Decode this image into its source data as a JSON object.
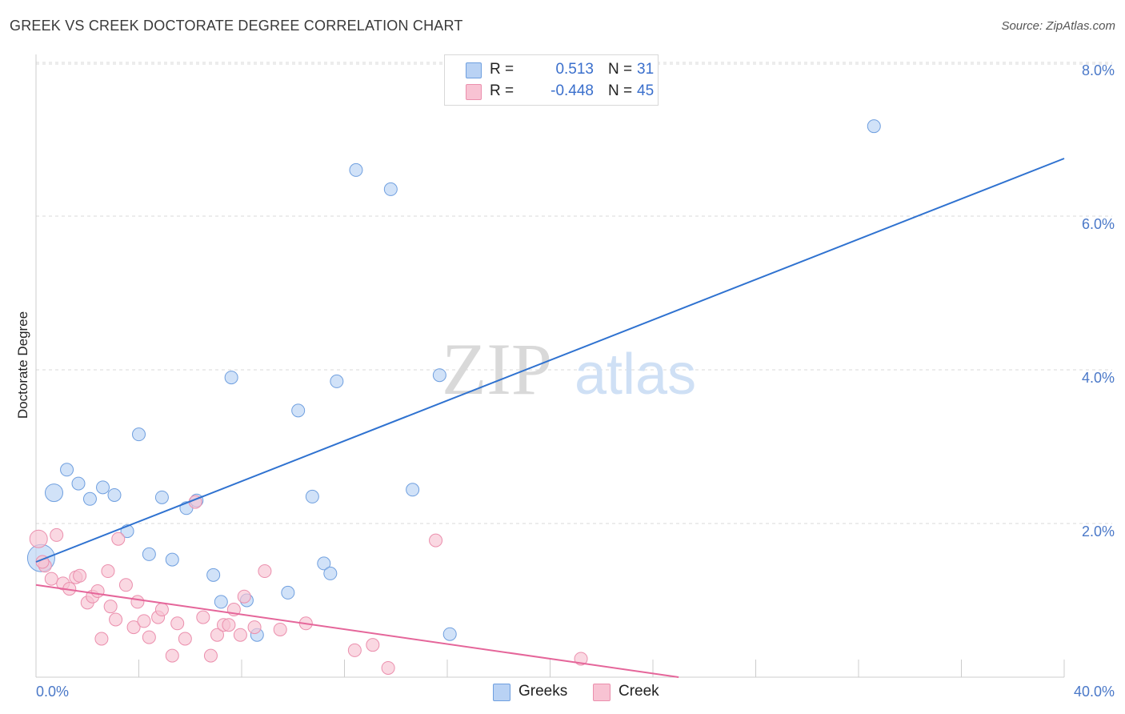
{
  "header": {
    "title": "GREEK VS CREEK DOCTORATE DEGREE CORRELATION CHART",
    "source": "Source: ZipAtlas.com"
  },
  "watermark": {
    "zip": "ZIP",
    "atlas": "atlas"
  },
  "colors": {
    "blue_fill": "#b9d2f4",
    "blue_stroke": "#6f9fdf",
    "blue_line": "#2f72d0",
    "pink_fill": "#f8c3d3",
    "pink_stroke": "#eb8fad",
    "pink_line": "#e5669a",
    "grid": "#d9d9d9",
    "tick_text": "#4a78c8"
  },
  "legend": {
    "rows": [
      {
        "r_label": "R =",
        "r_value": "0.513",
        "n_label": "N =",
        "n_value": "31",
        "color_key": "blue"
      },
      {
        "r_label": "R =",
        "r_value": "-0.448",
        "n_label": "N =",
        "n_value": "45",
        "color_key": "pink"
      }
    ]
  },
  "bottom_legend": [
    {
      "label": "Greeks",
      "color_key": "blue"
    },
    {
      "label": "Creek",
      "color_key": "pink"
    }
  ],
  "chart_data": {
    "type": "scatter",
    "title": "GREEK VS CREEK DOCTORATE DEGREE CORRELATION CHART",
    "xlabel": "",
    "ylabel": "Doctorate Degree",
    "xlim": [
      0,
      40
    ],
    "ylim": [
      0,
      8.3
    ],
    "x_tick_labels": [
      {
        "value": 0,
        "label": "0.0%"
      },
      {
        "value": 40,
        "label": "40.0%"
      }
    ],
    "x_minor_ticks": [
      4,
      8,
      12,
      16,
      20,
      24,
      28,
      32,
      36,
      40
    ],
    "y_ticks": [
      {
        "value": 2,
        "label": "2.0%"
      },
      {
        "value": 4,
        "label": "4.0%"
      },
      {
        "value": 6,
        "label": "6.0%"
      },
      {
        "value": 8,
        "label": "8.0%"
      }
    ],
    "grid": true,
    "legend_position": "top-center",
    "series": [
      {
        "name": "Greeks",
        "color_key": "blue",
        "trend": {
          "x": [
            0,
            40
          ],
          "y": [
            1.5,
            6.75
          ]
        },
        "points": [
          {
            "x": 0.2,
            "y": 1.55,
            "size": "large"
          },
          {
            "x": 0.7,
            "y": 2.4,
            "size": "medium"
          },
          {
            "x": 1.2,
            "y": 2.7
          },
          {
            "x": 1.65,
            "y": 2.52
          },
          {
            "x": 2.1,
            "y": 2.32
          },
          {
            "x": 2.6,
            "y": 2.47
          },
          {
            "x": 3.05,
            "y": 2.37
          },
          {
            "x": 3.55,
            "y": 1.9
          },
          {
            "x": 4.0,
            "y": 3.16
          },
          {
            "x": 4.4,
            "y": 1.6
          },
          {
            "x": 4.9,
            "y": 2.34
          },
          {
            "x": 5.3,
            "y": 1.53
          },
          {
            "x": 5.85,
            "y": 2.2
          },
          {
            "x": 6.25,
            "y": 2.3
          },
          {
            "x": 6.9,
            "y": 1.33
          },
          {
            "x": 7.2,
            "y": 0.98
          },
          {
            "x": 7.6,
            "y": 3.9
          },
          {
            "x": 8.2,
            "y": 1.0
          },
          {
            "x": 8.6,
            "y": 0.55
          },
          {
            "x": 9.8,
            "y": 1.1
          },
          {
            "x": 10.2,
            "y": 3.47
          },
          {
            "x": 10.75,
            "y": 2.35
          },
          {
            "x": 11.2,
            "y": 1.48
          },
          {
            "x": 11.45,
            "y": 1.35
          },
          {
            "x": 11.7,
            "y": 3.85
          },
          {
            "x": 12.45,
            "y": 6.6
          },
          {
            "x": 13.8,
            "y": 6.35
          },
          {
            "x": 14.65,
            "y": 2.44
          },
          {
            "x": 15.7,
            "y": 3.93
          },
          {
            "x": 16.1,
            "y": 0.56
          },
          {
            "x": 32.6,
            "y": 7.17
          }
        ]
      },
      {
        "name": "Creek",
        "color_key": "pink",
        "trend": {
          "x": [
            0,
            25
          ],
          "y": [
            1.2,
            0.0
          ]
        },
        "points": [
          {
            "x": 0.1,
            "y": 1.8,
            "size": "medium"
          },
          {
            "x": 0.35,
            "y": 1.45
          },
          {
            "x": 0.6,
            "y": 1.28
          },
          {
            "x": 0.8,
            "y": 1.85
          },
          {
            "x": 1.05,
            "y": 1.22
          },
          {
            "x": 1.3,
            "y": 1.15
          },
          {
            "x": 1.55,
            "y": 1.3
          },
          {
            "x": 1.7,
            "y": 1.32
          },
          {
            "x": 2.0,
            "y": 0.97
          },
          {
            "x": 2.2,
            "y": 1.05
          },
          {
            "x": 2.4,
            "y": 1.12
          },
          {
            "x": 2.55,
            "y": 0.5
          },
          {
            "x": 2.8,
            "y": 1.38
          },
          {
            "x": 3.1,
            "y": 0.75
          },
          {
            "x": 3.2,
            "y": 1.8
          },
          {
            "x": 3.5,
            "y": 1.2
          },
          {
            "x": 3.8,
            "y": 0.65
          },
          {
            "x": 3.95,
            "y": 0.98
          },
          {
            "x": 4.2,
            "y": 0.73
          },
          {
            "x": 4.4,
            "y": 0.52
          },
          {
            "x": 4.75,
            "y": 0.78
          },
          {
            "x": 4.9,
            "y": 0.88
          },
          {
            "x": 5.3,
            "y": 0.28
          },
          {
            "x": 5.5,
            "y": 0.7
          },
          {
            "x": 5.8,
            "y": 0.5
          },
          {
            "x": 6.2,
            "y": 2.28
          },
          {
            "x": 6.5,
            "y": 0.78
          },
          {
            "x": 6.8,
            "y": 0.28
          },
          {
            "x": 7.05,
            "y": 0.55
          },
          {
            "x": 7.3,
            "y": 0.68
          },
          {
            "x": 7.5,
            "y": 0.68
          },
          {
            "x": 7.7,
            "y": 0.88
          },
          {
            "x": 7.95,
            "y": 0.55
          },
          {
            "x": 8.1,
            "y": 1.05
          },
          {
            "x": 8.5,
            "y": 0.65
          },
          {
            "x": 8.9,
            "y": 1.38
          },
          {
            "x": 9.5,
            "y": 0.62
          },
          {
            "x": 10.5,
            "y": 0.7
          },
          {
            "x": 12.4,
            "y": 0.35
          },
          {
            "x": 13.1,
            "y": 0.42
          },
          {
            "x": 13.7,
            "y": 0.12
          },
          {
            "x": 15.55,
            "y": 1.78
          },
          {
            "x": 21.2,
            "y": 0.24
          },
          {
            "x": 0.25,
            "y": 1.5
          },
          {
            "x": 2.9,
            "y": 0.92
          }
        ]
      }
    ]
  }
}
